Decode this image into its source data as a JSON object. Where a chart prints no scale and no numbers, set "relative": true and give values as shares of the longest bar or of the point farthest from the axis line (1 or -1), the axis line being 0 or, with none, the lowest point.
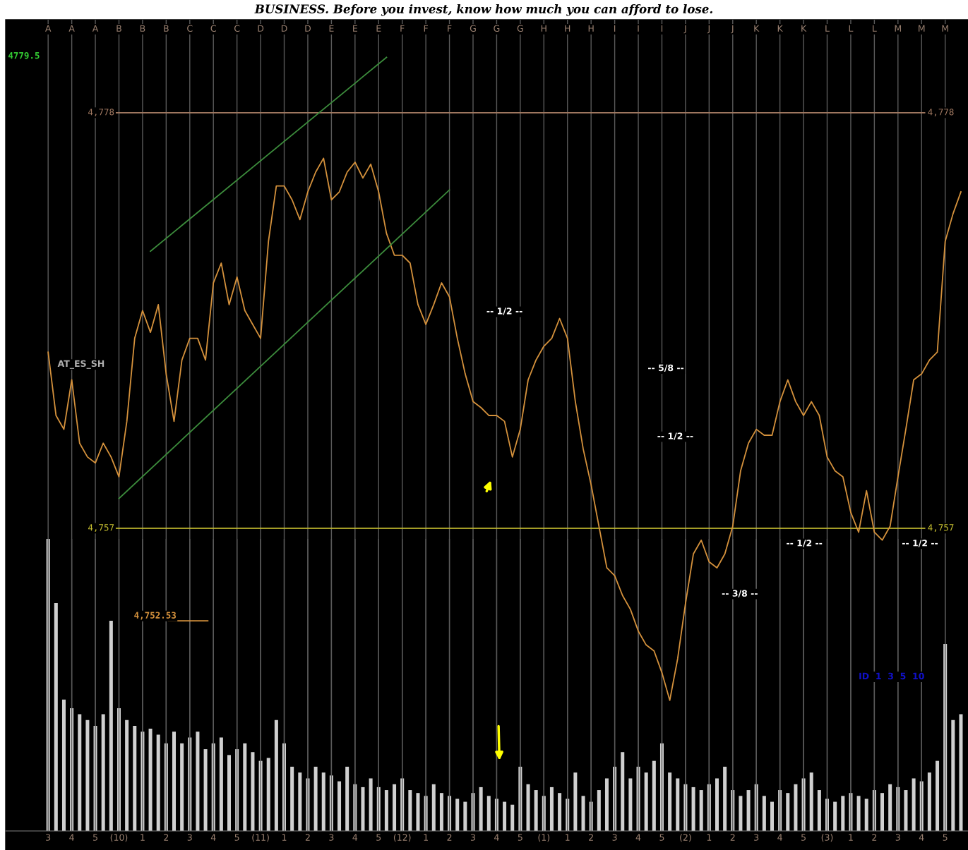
{
  "chart_data": [
    {
      "type": "line",
      "title": "BUSINESS. Before you invest, know how much you can afford to lose.",
      "categories": [
        "A",
        null,
        null,
        "A",
        null,
        null,
        "A",
        null,
        null,
        "B",
        null,
        null,
        "B",
        null,
        null,
        "B",
        null,
        null,
        "C",
        null,
        null,
        "C",
        null,
        null,
        "C",
        null,
        null,
        "D",
        null,
        null,
        "D",
        null,
        null,
        "D",
        null,
        null,
        "E",
        null,
        null,
        "E",
        null,
        null,
        "E",
        null,
        null,
        "F",
        null,
        null,
        "F",
        null,
        null,
        "F",
        null,
        null,
        "G",
        null,
        null,
        "G",
        null,
        null,
        "G",
        null,
        null,
        "H",
        null,
        null,
        "H",
        null,
        null,
        "H",
        null,
        null,
        "I",
        null,
        null,
        "I",
        null,
        null,
        "I",
        null,
        null,
        "J",
        null,
        null,
        "J",
        null,
        null,
        "J",
        null,
        null,
        "K",
        null,
        null,
        "K",
        null,
        null,
        "K",
        null,
        null,
        "L",
        null,
        null,
        "L",
        null,
        null,
        "L",
        null,
        null,
        "M",
        null,
        null,
        "M",
        null,
        null,
        "M",
        null,
        null
      ],
      "series": [
        {
          "color": "#d4913c",
          "values": [
            4765.9,
            4762.7,
            4762.0,
            4764.5,
            4761.3,
            4760.6,
            4760.3,
            4761.3,
            4760.6,
            4759.6,
            4762.4,
            4766.6,
            4768.0,
            4766.9,
            4768.3,
            4764.8,
            4762.4,
            4765.5,
            4766.6,
            4766.6,
            4765.5,
            4769.4,
            4770.4,
            4768.3,
            4769.7,
            4768.0,
            4767.3,
            4766.6,
            4771.5,
            4774.3,
            4774.3,
            4773.6,
            4772.6,
            4774.0,
            4775.0,
            4775.7,
            4773.6,
            4774.0,
            4775.0,
            4775.5,
            4774.7,
            4775.4,
            4774.0,
            4771.9,
            4770.8,
            4770.8,
            4770.4,
            4768.3,
            4767.3,
            4768.3,
            4769.4,
            4768.7,
            4766.6,
            4764.8,
            4763.4,
            4763.1,
            4762.7,
            4762.7,
            4762.4,
            4760.6,
            4762.0,
            4764.5,
            4765.5,
            4766.2,
            4766.6,
            4767.6,
            4766.6,
            4763.4,
            4761.0,
            4759.2,
            4757.1,
            4755.0,
            4754.6,
            4753.6,
            4752.9,
            4751.8,
            4751.1,
            4750.8,
            4749.7,
            4748.3,
            4750.4,
            4753.2,
            4755.7,
            4756.4,
            4755.3,
            4755.0,
            4755.7,
            4757.1,
            4759.9,
            4761.3,
            4762.0,
            4761.7,
            4761.7,
            4763.4,
            4764.5,
            4763.4,
            4762.7,
            4763.4,
            4762.7,
            4760.6,
            4759.9,
            4759.6,
            4757.8,
            4756.8,
            4758.9,
            4756.8,
            4756.4,
            4757.1,
            4759.6,
            4762.0,
            4764.5,
            4764.8,
            4765.5,
            4765.9,
            4771.5,
            4772.9,
            4774.0
          ]
        },
        {
          "type": "line",
          "color": "#3c8c3c",
          "values": [
            null,
            null,
            null,
            null,
            null,
            null,
            null,
            null,
            null,
            null,
            null,
            null,
            null,
            4771.0,
            null,
            null,
            null,
            null,
            null,
            null,
            null,
            null,
            null,
            null,
            null,
            null,
            null,
            null,
            null,
            null,
            null,
            null,
            null,
            null,
            null,
            null,
            null,
            null,
            null,
            null,
            null,
            null,
            null,
            4780.8,
            null,
            null,
            null,
            null,
            null,
            null,
            null,
            null,
            null,
            null,
            null,
            null,
            null,
            null,
            null,
            null,
            null,
            null,
            null,
            null,
            null,
            null,
            null,
            null,
            null,
            null,
            null,
            null,
            null,
            null,
            null,
            null,
            null,
            null,
            null,
            null,
            null,
            null,
            null,
            null,
            null,
            null,
            null,
            null,
            null,
            null,
            null,
            null,
            null,
            null,
            null,
            null,
            null,
            null,
            null,
            null,
            null,
            null,
            null,
            null,
            null,
            null,
            null,
            null,
            null,
            null,
            null,
            null,
            null,
            null,
            null,
            null,
            null
          ]
        },
        {
          "type": "line",
          "color": "#3c8c3c",
          "values": [
            null,
            null,
            null,
            null,
            null,
            null,
            null,
            null,
            null,
            4758.5,
            null,
            null,
            null,
            null,
            null,
            null,
            null,
            null,
            null,
            null,
            null,
            null,
            null,
            null,
            null,
            null,
            null,
            null,
            null,
            null,
            null,
            null,
            null,
            null,
            null,
            null,
            null,
            null,
            null,
            null,
            null,
            null,
            null,
            null,
            null,
            null,
            null,
            null,
            null,
            null,
            null,
            4774.1,
            null,
            null,
            null,
            null,
            null,
            null,
            null,
            null,
            null,
            null,
            null,
            null,
            null,
            null,
            null,
            null,
            null,
            null,
            null,
            null,
            null,
            null,
            null,
            null,
            null,
            null,
            null,
            null,
            null,
            null,
            null,
            null,
            null,
            null,
            null,
            null,
            null,
            null,
            null,
            null,
            null,
            null,
            null,
            null,
            null,
            null,
            null,
            null,
            null,
            null,
            null,
            null,
            null,
            null,
            null,
            null,
            null,
            null,
            null,
            null,
            null,
            null,
            null,
            null,
            null
          ]
        }
      ],
      "ylim": [
        4741.7,
        4782.7
      ],
      "tick_labels": "x",
      "grid": "x",
      "ref_lines": [
        {
          "axis": "y",
          "value": 4778,
          "label": "4,778",
          "color": "#a07860"
        },
        {
          "axis": "y",
          "value": 4757,
          "label": "4,757",
          "color": "#c8c030"
        }
      ],
      "annotations": [
        "4779.5",
        "AT_ES_SH",
        "ID  1  3  5  10",
        "4,752.53",
        "-- 1/2 --",
        "-- 5/8 --",
        "-- 1/2 --",
        "-- 3/8 --",
        "-- 1/2 --",
        "-- 1/2 --"
      ]
    },
    {
      "type": "bar",
      "relative": true,
      "color": "#d0d0d0",
      "categories": [
        "3",
        null,
        null,
        "4",
        null,
        null,
        "5",
        null,
        null,
        "(10)",
        null,
        null,
        "1",
        null,
        null,
        "2",
        null,
        null,
        "3",
        null,
        null,
        "4",
        null,
        null,
        "5",
        null,
        null,
        "(11)",
        null,
        null,
        "1",
        null,
        null,
        "2",
        null,
        null,
        "3",
        null,
        null,
        "4",
        null,
        null,
        "5",
        null,
        null,
        "(12)",
        null,
        null,
        "1",
        null,
        null,
        "2",
        null,
        null,
        "3",
        null,
        null,
        "4",
        null,
        null,
        "5",
        null,
        null,
        "(1)",
        null,
        null,
        "1",
        null,
        null,
        "2",
        null,
        null,
        "3",
        null,
        null,
        "4",
        null,
        null,
        "5",
        null,
        null,
        "(2)",
        null,
        null,
        "1",
        null,
        null,
        "2",
        null,
        null,
        "3",
        null,
        null,
        "4",
        null,
        null,
        "5",
        null,
        null,
        "(3)",
        null,
        null,
        "1",
        null,
        null,
        "2",
        null,
        null,
        "3",
        null,
        null,
        "4",
        null,
        null,
        "5",
        null,
        null
      ],
      "grid": "x",
      "values": [
        1.0,
        0.78,
        0.45,
        0.42,
        0.4,
        0.38,
        0.36,
        0.4,
        0.72,
        0.42,
        0.38,
        0.36,
        0.34,
        0.35,
        0.33,
        0.3,
        0.34,
        0.3,
        0.32,
        0.34,
        0.28,
        0.3,
        0.32,
        0.26,
        0.28,
        0.3,
        0.27,
        0.24,
        0.25,
        0.38,
        0.3,
        0.22,
        0.2,
        0.18,
        0.22,
        0.2,
        0.19,
        0.17,
        0.22,
        0.16,
        0.15,
        0.18,
        0.15,
        0.14,
        0.16,
        0.18,
        0.14,
        0.13,
        0.12,
        0.16,
        0.13,
        0.12,
        0.11,
        0.1,
        0.13,
        0.15,
        0.12,
        0.11,
        0.1,
        0.09,
        0.22,
        0.16,
        0.14,
        0.12,
        0.15,
        0.13,
        0.11,
        0.2,
        0.12,
        0.1,
        0.14,
        0.18,
        0.22,
        0.27,
        0.18,
        0.22,
        0.2,
        0.24,
        0.3,
        0.2,
        0.18,
        0.16,
        0.15,
        0.14,
        0.16,
        0.18,
        0.22,
        0.14,
        0.12,
        0.14,
        0.16,
        0.12,
        0.1,
        0.14,
        0.13,
        0.16,
        0.18,
        0.2,
        0.14,
        0.11,
        0.1,
        0.12,
        0.13,
        0.12,
        0.11,
        0.14,
        0.13,
        0.16,
        0.15,
        0.14,
        0.18,
        0.17,
        0.2,
        0.24,
        0.64,
        0.38,
        0.4
      ]
    }
  ]
}
